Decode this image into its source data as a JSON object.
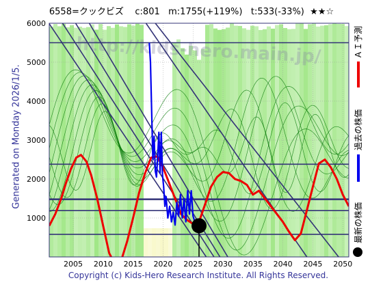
{
  "title": "6558=クックビズ    c:801   m:1755(+119%)   t:533(-33%)  ★★☆",
  "side_text": "Generated on Monday 2026/1/5.",
  "footer": "Copyright (c) Kids-Hero Research Institute. All Rights Reserved.",
  "watermark": "http://kids-hero.main.jp/",
  "legend": {
    "ai": "ＡＩ予測",
    "past": "過去の株価",
    "latest": "最新の株価"
  },
  "colors": {
    "band_green": "#9be57f",
    "band_yellow": "#f7f7c0",
    "ai_line": "#ee0000",
    "past_line": "#0000ee",
    "grid_line": "#333377",
    "thin_green": "#0a7a0a",
    "latest_dot": "#000000"
  },
  "chart_data": {
    "type": "line",
    "xlim": [
      2001,
      2051
    ],
    "ylim": [
      0,
      6000
    ],
    "x_ticks": [
      2005,
      2010,
      2015,
      2020,
      2025,
      2030,
      2035,
      2040,
      2045,
      2050
    ],
    "y_ticks": [
      1000,
      2000,
      3000,
      4000,
      5000,
      6000
    ],
    "grid": true,
    "horizontal_levels": [
      5500,
      2380,
      1480,
      1190,
      580
    ],
    "diagonal_trend_lines": [
      {
        "x": [
          2000.5,
          2027.2
        ],
        "y": [
          6100,
          0
        ]
      },
      {
        "x": [
          2002.8,
          2028.5
        ],
        "y": [
          6100,
          0
        ]
      },
      {
        "x": [
          2005.0,
          2029.5
        ],
        "y": [
          6100,
          0
        ]
      },
      {
        "x": [
          2007.3,
          2030.8
        ],
        "y": [
          6100,
          0
        ]
      },
      {
        "x": [
          2016.7,
          2044.0
        ],
        "y": [
          6100,
          0
        ]
      },
      {
        "x": [
          2018.2,
          2049.3
        ],
        "y": [
          6100,
          0
        ]
      }
    ],
    "latest_point": {
      "x": 2026.0,
      "y": 801
    },
    "series": [
      {
        "name": "ＡＩ予測",
        "x": [
          2001.0,
          2002.0,
          2003.0,
          2003.8,
          2004.6,
          2005.5,
          2006.3,
          2007.2,
          2008.0,
          2009.0,
          2010.0,
          2011.0,
          2012.0,
          2013.0,
          2014.0,
          2015.0,
          2016.0,
          2017.0,
          2018.0,
          2019.0,
          2020.0,
          2021.0,
          2022.0,
          2023.0,
          2024.0,
          2025.0,
          2026.0,
          2027.0,
          2028.0,
          2029.0,
          2030.0,
          2031.0,
          2032.0,
          2033.0,
          2034.0,
          2035.0,
          2036.0,
          2037.0,
          2038.0,
          2039.0,
          2040.0,
          2041.0,
          2042.0,
          2043.0,
          2044.0,
          2045.0,
          2046.0,
          2047.0,
          2048.0,
          2049.0,
          2050.0,
          2051.0
        ],
        "y": [
          800,
          1100,
          1500,
          1900,
          2250,
          2550,
          2620,
          2450,
          2100,
          1500,
          800,
          100,
          -200,
          -100,
          400,
          1000,
          1650,
          2150,
          2550,
          2580,
          2300,
          1900,
          1500,
          1100,
          950,
          850,
          900,
          1350,
          1800,
          2050,
          2180,
          2150,
          2000,
          1950,
          1850,
          1600,
          1700,
          1500,
          1300,
          1100,
          900,
          650,
          430,
          600,
          1200,
          1800,
          2400,
          2500,
          2300,
          2000,
          1600,
          1300
        ]
      },
      {
        "name": "過去の株価",
        "x": [
          2017.7,
          2017.9,
          2018.1,
          2018.3,
          2018.5,
          2018.7,
          2018.9,
          2019.1,
          2019.3,
          2019.5,
          2019.7,
          2019.9,
          2020.1,
          2020.3,
          2020.5,
          2020.8,
          2021.1,
          2021.4,
          2021.7,
          2022.0,
          2022.3,
          2022.6,
          2022.9,
          2023.2,
          2023.5,
          2023.8,
          2024.1,
          2024.4,
          2024.7,
          2025.0,
          2025.2,
          2025.4,
          2025.6,
          2025.8,
          2026.0
        ],
        "y": [
          5500,
          5000,
          3700,
          2500,
          3100,
          2200,
          2050,
          2600,
          3200,
          2150,
          3200,
          2100,
          1800,
          1300,
          1550,
          1000,
          1300,
          900,
          1150,
          820,
          1400,
          1050,
          1600,
          1000,
          1500,
          900,
          1700,
          1100,
          1700,
          1050,
          950,
          900,
          850,
          820,
          801
        ]
      }
    ]
  }
}
